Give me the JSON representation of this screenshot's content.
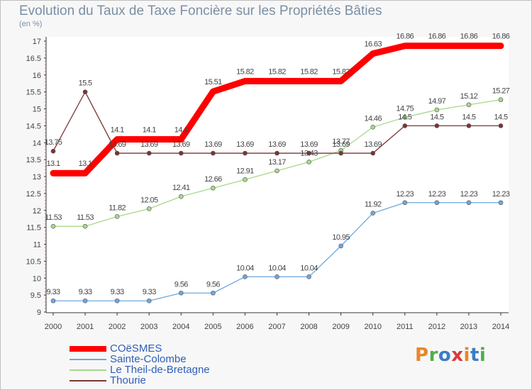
{
  "header": {
    "title": "Evolution du Taux de Taxe Foncière sur les Propriétés Bâties",
    "unit": "(en %)"
  },
  "logo": {
    "text": "Proxiti",
    "colors": [
      "#e8862a",
      "#4fae4a",
      "#3a7cc8",
      "#d93a3a",
      "#e8862a",
      "#3a7cc8",
      "#4fae4a"
    ]
  },
  "chart_data": {
    "type": "line",
    "x": [
      "2000",
      "2001",
      "2002",
      "2003",
      "2004",
      "2005",
      "2006",
      "2007",
      "2008",
      "2009",
      "2010",
      "2011",
      "2012",
      "2013",
      "2014"
    ],
    "ylim": [
      9,
      17
    ],
    "yticks": [
      "9",
      "9.5",
      "10",
      "10.5",
      "11",
      "11.5",
      "12",
      "12.5",
      "13",
      "13.5",
      "14",
      "14.5",
      "15",
      "15.5",
      "16",
      "16.5",
      "17"
    ],
    "grid": false,
    "legend_position": "bottom-left",
    "series": [
      {
        "name": "COëSMES",
        "color": "#ff0000",
        "values": [
          13.1,
          13.1,
          14.1,
          14.1,
          14.1,
          15.51,
          15.82,
          15.82,
          15.82,
          15.82,
          16.63,
          16.86,
          16.86,
          16.86,
          16.86
        ],
        "labels": [
          "13.1",
          "13.1",
          "14.1",
          "14.1",
          "14.1",
          "15.51",
          "15.82",
          "15.82",
          "15.82",
          "15.82",
          "16.63",
          "16.86",
          "16.86",
          "16.86",
          "16.86"
        ]
      },
      {
        "name": "Sainte-Colombe",
        "color": "#6fa8dc",
        "values": [
          9.33,
          9.33,
          9.33,
          9.33,
          9.56,
          9.56,
          10.04,
          10.04,
          10.04,
          10.95,
          11.92,
          12.23,
          12.23,
          12.23,
          12.23
        ],
        "labels": [
          "9.33",
          "9.33",
          "9.33",
          "9.33",
          "9.56",
          "9.56",
          "10.04",
          "10.04",
          "10.04",
          "10.95",
          "11.92",
          "12.23",
          "12.23",
          "12.23",
          "12.23"
        ]
      },
      {
        "name": "Le Theil-de-Bretagne",
        "color": "#a8d88a",
        "values": [
          11.53,
          11.53,
          11.82,
          12.05,
          12.41,
          12.66,
          12.91,
          13.17,
          13.43,
          13.77,
          14.46,
          14.75,
          14.97,
          15.12,
          15.27
        ],
        "labels": [
          "11.53",
          "11.53",
          "11.82",
          "12.05",
          "12.41",
          "12.66",
          "12.91",
          "13.17",
          "13.43",
          "13.77",
          "14.46",
          "14.75",
          "14.97",
          "15.12",
          "15.27"
        ]
      },
      {
        "name": "Thourie",
        "color": "#7a3535",
        "values": [
          13.75,
          15.5,
          13.69,
          13.69,
          13.69,
          13.69,
          13.69,
          13.69,
          13.69,
          13.69,
          13.69,
          14.5,
          14.5,
          14.5,
          14.5
        ],
        "labels": [
          "13.75",
          "15.5",
          "13.69",
          "13.69",
          "13.69",
          "13.69",
          "13.69",
          "13.69",
          "13.69",
          "13.69",
          "13.69",
          "14.5",
          "14.5",
          "14.5",
          "14.5"
        ]
      }
    ]
  }
}
